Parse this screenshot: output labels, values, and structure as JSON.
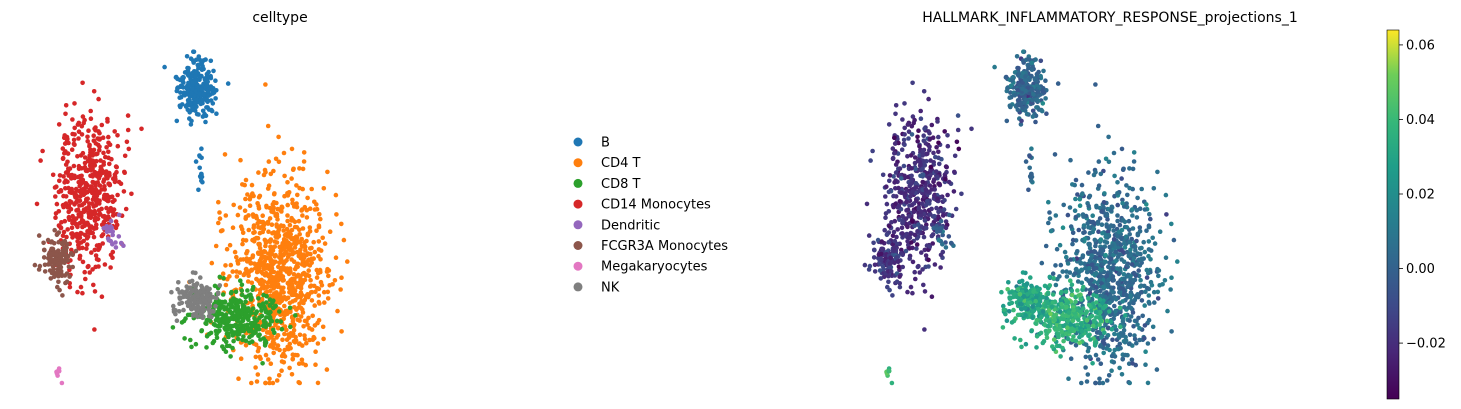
{
  "chart_data": [
    {
      "type": "scatter",
      "title": "celltype",
      "legend_position": "right",
      "legend": [
        {
          "label": "B",
          "color": "#1f77b4"
        },
        {
          "label": "CD4 T",
          "color": "#ff7f0e"
        },
        {
          "label": "CD8 T",
          "color": "#2ca02c"
        },
        {
          "label": "CD14 Monocytes",
          "color": "#d62728"
        },
        {
          "label": "Dendritic",
          "color": "#9467bd"
        },
        {
          "label": "FCGR3A Monocytes",
          "color": "#8c564b"
        },
        {
          "label": "Megakaryocytes",
          "color": "#e377c2"
        },
        {
          "label": "NK",
          "color": "#7f7f7f"
        }
      ],
      "clusters": [
        {
          "celltype": "B",
          "center": [
            0.315,
            0.14
          ],
          "spread": [
            0.02,
            0.045
          ],
          "n": 260
        },
        {
          "celltype": "B",
          "center": [
            0.32,
            0.36
          ],
          "spread": [
            0.005,
            0.04
          ],
          "n": 14
        },
        {
          "celltype": "CD4 T",
          "center": [
            0.47,
            0.67
          ],
          "spread": [
            0.05,
            0.15
          ],
          "n": 900
        },
        {
          "celltype": "CD8 T",
          "center": [
            0.39,
            0.79
          ],
          "spread": [
            0.045,
            0.045
          ],
          "n": 340
        },
        {
          "celltype": "CD14 Monocytes",
          "center": [
            0.11,
            0.44
          ],
          "spread": [
            0.035,
            0.12
          ],
          "n": 520
        },
        {
          "celltype": "Dendritic",
          "center": [
            0.155,
            0.55
          ],
          "spread": [
            0.01,
            0.02
          ],
          "n": 22
        },
        {
          "celltype": "FCGR3A Monocytes",
          "center": [
            0.05,
            0.63
          ],
          "spread": [
            0.015,
            0.04
          ],
          "n": 130
        },
        {
          "celltype": "Megakaryocytes",
          "center": [
            0.055,
            0.95
          ],
          "spread": [
            0.003,
            0.008
          ],
          "n": 9
        },
        {
          "celltype": "NK",
          "center": [
            0.315,
            0.74
          ],
          "spread": [
            0.02,
            0.03
          ],
          "n": 170
        }
      ]
    },
    {
      "type": "scatter",
      "title": "HALLMARK_INFLAMMATORY_RESPONSE_projections_1",
      "colorbar": {
        "colormap": "viridis",
        "min": -0.035,
        "max": 0.064,
        "ticks": [
          "0.06",
          "0.04",
          "0.02",
          "0.00",
          "−0.02"
        ],
        "tick_values": [
          0.06,
          0.04,
          0.02,
          0.0,
          -0.02
        ]
      },
      "cluster_values": {
        "B": 0.002,
        "CD4 T": 0.004,
        "CD8 T": 0.036,
        "CD14 Monocytes": -0.02,
        "Dendritic": 0.0,
        "FCGR3A Monocytes": -0.018,
        "Megakaryocytes": 0.042,
        "NK": 0.03
      }
    }
  ]
}
